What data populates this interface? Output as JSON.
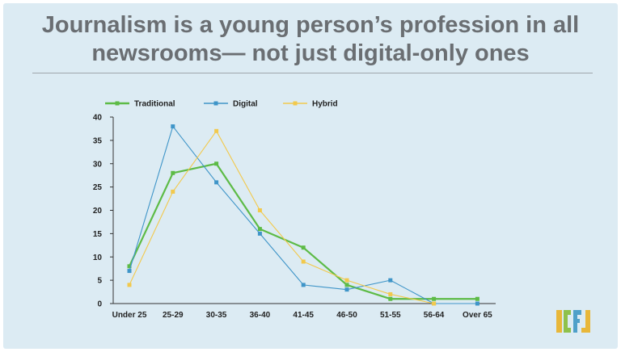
{
  "title": {
    "line1": "Journalism is a young person’s profession in all",
    "line2": "newsrooms— not just digital-only ones"
  },
  "logo": {
    "text": "ICFJ",
    "colors": [
      "#e8b73a",
      "#8fc14b",
      "#4fa0c9",
      "#e8b73a"
    ]
  },
  "chart_data": {
    "type": "line",
    "title": "Journalism is a young person’s profession in all newsrooms— not just digital-only ones",
    "xlabel": "",
    "ylabel": "",
    "categories": [
      "Under 25",
      "25-29",
      "30-35",
      "36-40",
      "41-45",
      "46-50",
      "51-55",
      "56-64",
      "Over 65"
    ],
    "ylim": [
      0,
      40
    ],
    "yticks": [
      0,
      5,
      10,
      15,
      20,
      25,
      30,
      35,
      40
    ],
    "legend_position": "top-left",
    "series": [
      {
        "name": "Traditional",
        "color": "#5dbb46",
        "width": 2.2,
        "values": [
          8,
          28,
          30,
          16,
          12,
          4,
          1,
          1,
          1
        ]
      },
      {
        "name": "Digital",
        "color": "#3f95c8",
        "width": 1.1,
        "values": [
          7,
          38,
          26,
          15,
          4,
          3,
          5,
          0,
          0
        ]
      },
      {
        "name": "Hybrid",
        "color": "#f2c94c",
        "width": 1.1,
        "values": [
          4,
          24,
          37,
          20,
          9,
          5,
          2,
          0,
          null
        ]
      }
    ]
  }
}
